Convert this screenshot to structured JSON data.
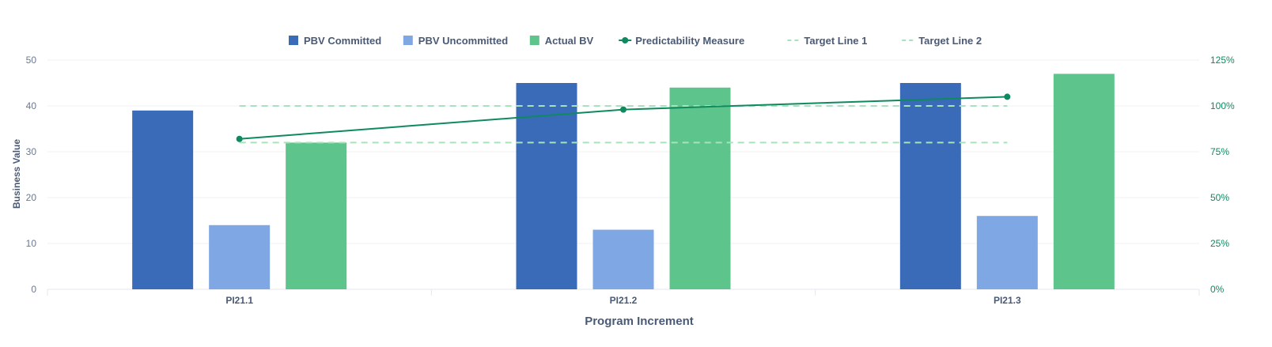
{
  "chart_data": {
    "type": "bar",
    "categories": [
      "PI21.1",
      "PI21.2",
      "PI21.3"
    ],
    "series": [
      {
        "name": "PBV Committed",
        "kind": "bar",
        "axis": "left",
        "color": "#3a6bb8",
        "values": [
          39,
          45,
          45
        ]
      },
      {
        "name": "PBV Uncommitted",
        "kind": "bar",
        "axis": "left",
        "color": "#7ea7e3",
        "values": [
          14,
          13,
          16
        ]
      },
      {
        "name": "Actual BV",
        "kind": "bar",
        "axis": "left",
        "color": "#5dc58b",
        "values": [
          32,
          44,
          47
        ]
      },
      {
        "name": "Predictability Measure",
        "kind": "line",
        "axis": "right",
        "color": "#0f8a5f",
        "values": [
          82,
          98,
          105
        ]
      },
      {
        "name": "Target Line 1",
        "kind": "dashed",
        "axis": "right",
        "color": "#a6e3bb",
        "values": [
          100,
          100,
          100
        ]
      },
      {
        "name": "Target Line 2",
        "kind": "dashed",
        "axis": "right",
        "color": "#a6e3bb",
        "values": [
          80,
          80,
          80
        ]
      }
    ],
    "xlabel": "Program Increment",
    "ylabel": "Business Value",
    "ylim": [
      0,
      50
    ],
    "yticks": [
      "0",
      "10",
      "20",
      "30",
      "40",
      "50"
    ],
    "y2lim": [
      0,
      125
    ],
    "y2ticks": [
      "0%",
      "25%",
      "50%",
      "75%",
      "100%",
      "125%"
    ],
    "legend_position": "top-center",
    "grid": true
  }
}
